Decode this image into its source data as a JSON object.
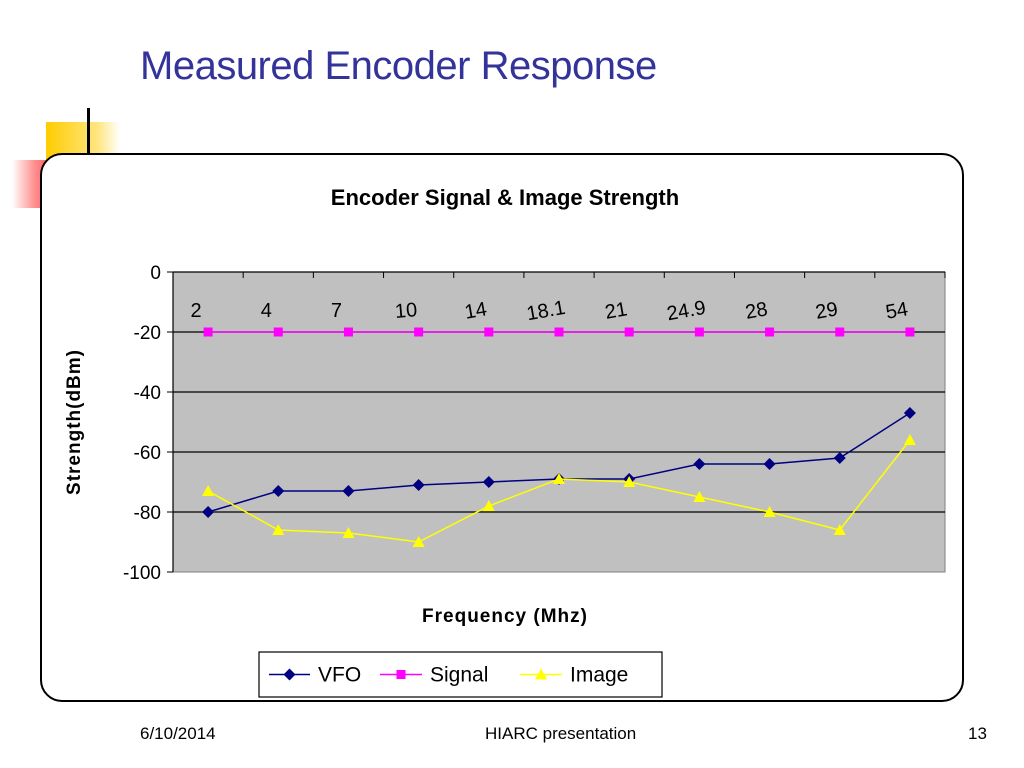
{
  "slide": {
    "title": "Measured Encoder Response",
    "footer_date": "6/10/2014",
    "footer_center": "HIARC presentation",
    "page_number": "13"
  },
  "colors": {
    "title": "#333399",
    "plot_area": "#c0c0c0",
    "vfo": "#000080",
    "signal": "#ff00ff",
    "image": "#ffff00"
  },
  "chart_data": {
    "type": "line",
    "title": "Encoder  Signal & Image Strength",
    "xlabel": "Frequency (Mhz)",
    "ylabel": "Strength(dBm)",
    "categories": [
      "2",
      "4",
      "7",
      "10",
      "14",
      "18.1",
      "21",
      "24.9",
      "28",
      "29",
      "54"
    ],
    "category_label_rotation_deg": [
      0,
      0,
      0,
      -5,
      -10,
      -10,
      -10,
      -10,
      -10,
      -10,
      -10
    ],
    "ylim": [
      -100,
      0
    ],
    "yticks": [
      0,
      -20,
      -40,
      -60,
      -80,
      -100
    ],
    "grid": "horizontal",
    "legend_position": "bottom",
    "series": [
      {
        "name": "VFO",
        "marker": "diamond",
        "values": [
          -80,
          -73,
          -73,
          -71,
          -70,
          -69,
          -69,
          -64,
          -64,
          -62,
          -47
        ]
      },
      {
        "name": "Signal",
        "marker": "square",
        "values": [
          -20,
          -20,
          -20,
          -20,
          -20,
          -20,
          -20,
          -20,
          -20,
          -20,
          -20
        ]
      },
      {
        "name": "Image",
        "marker": "triangle",
        "values": [
          -73,
          -86,
          -87,
          -90,
          -78,
          -69,
          -70,
          -75,
          -80,
          -86,
          -56
        ]
      }
    ]
  }
}
